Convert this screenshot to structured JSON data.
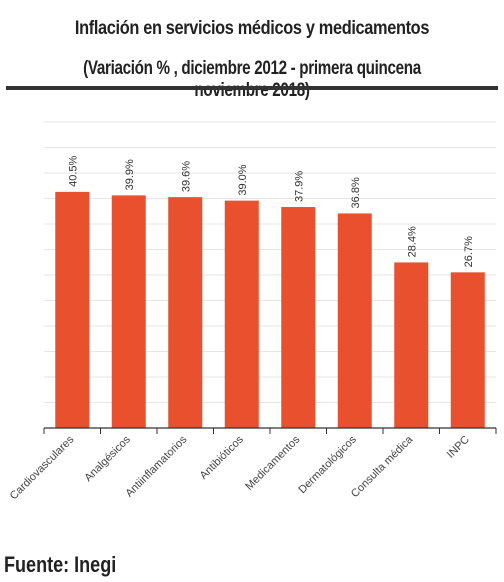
{
  "header": {
    "title": "Inflación en servicios médicos y medicamentos",
    "subtitle": "(Variación % , diciembre 2012 - primera quincena noviembre 2018)"
  },
  "footer": {
    "source": "Fuente: Inegi"
  },
  "chart_data": {
    "type": "bar",
    "title": "Inflación en servicios médicos y medicamentos",
    "subtitle": "(Variación % , diciembre 2012 - primera quincena noviembre 2018)",
    "categories": [
      "Cardiovasculares",
      "Analgésicos",
      "Antiinflamatorios",
      "Antibióticos",
      "Medicamentos",
      "Dermatológicos",
      "Consulta médica",
      "INPC"
    ],
    "values": [
      40.5,
      39.9,
      39.6,
      39.0,
      37.9,
      36.8,
      28.4,
      26.7
    ],
    "data_labels": [
      "40.5%",
      "39.9%",
      "39.6%",
      "39.0%",
      "37.9%",
      "36.8%",
      "28.4%",
      "26.7%"
    ],
    "xlabel": "",
    "ylabel": "",
    "ylim": [
      0,
      53
    ],
    "grid": true,
    "bar_color": "#e8502e",
    "grid_color": "#e6e6e6",
    "axis_color": "#333333"
  }
}
